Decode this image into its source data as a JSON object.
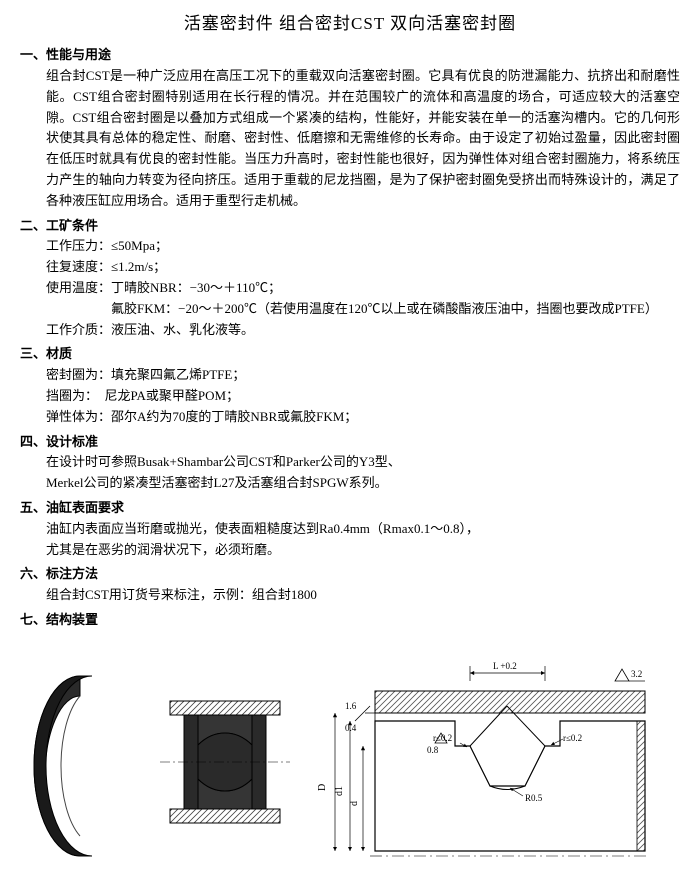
{
  "title": "活塞密封件 组合密封CST 双向活塞密封圈",
  "sections": [
    {
      "num": "一、",
      "header": "性能与用途",
      "body": "组合封CST是一种广泛应用在高压工况下的重载双向活塞密封圈。它具有优良的防泄漏能力、抗挤出和耐磨性能。CST组合密封圈特别适用在长行程的情况。并在范围较广的流体和高温度的场合，可适应较大的活塞空隙。CST组合密封圈是以叠加方式组成一个紧凑的结构，性能好，并能安装在单一的活塞沟槽内。它的几何形状使其具有总体的稳定性、耐磨、密封性、低磨擦和无需维修的长寿命。由于设定了初始过盈量，因此密封圈在低压时就具有优良的密封性能。当压力升高时，密封性能也很好，因为弹性体对组合密封圈施力，将系统压力产生的轴向力转变为径向挤压。适用于重载的尼龙挡圈，是为了保护密封圈免受挤出而特殊设计的，满足了各种液压缸应用场合。适用于重型行走机械。"
    },
    {
      "num": "二、",
      "header": "工矿条件",
      "params": [
        "工作压力：≤50Mpa；",
        "往复速度：≤1.2m/s；",
        "使用温度：丁晴胶NBR：−30～＋110℃；",
        "　　　　　氟胶FKM：−20～＋200℃（若使用温度在120℃以上或在磷酸酯液压油中，挡圈也要改成PTFE）",
        "工作介质：液压油、水、乳化液等。"
      ]
    },
    {
      "num": "三、",
      "header": "材质",
      "params": [
        "密封圈为：填充聚四氟乙烯PTFE；",
        "挡圈为：　尼龙PA或聚甲醛POM；",
        "弹性体为：邵尔A约为70度的丁晴胶NBR或氟胶FKM；"
      ]
    },
    {
      "num": "四、",
      "header": "设计标准",
      "params": [
        "在设计时可参照Busak+Shambar公司CST和Parker公司的Y3型、",
        "Merkel公司的紧凑型活塞密封L27及活塞组合封SPGW系列。"
      ]
    },
    {
      "num": "五、",
      "header": "油缸表面要求",
      "params": [
        "油缸内表面应当珩磨或抛光，使表面粗糙度达到Ra0.4mm（Rmax0.1～0.8），",
        "尤其是在恶劣的润滑状况下，必须珩磨。"
      ]
    },
    {
      "num": "六、",
      "header": "标注方法",
      "params": [
        "组合封CST用订货号来标注，示例：组合封1800"
      ]
    },
    {
      "num": "七、",
      "header": "结构装置",
      "params": []
    }
  ],
  "diagram": {
    "ring_dark": "#2a2a2a",
    "ring_mid": "#3d3d3d",
    "hatch": "#555555",
    "labels": {
      "L": "L +0.2",
      "tol1": "3.2",
      "tol2": "1.6",
      "tol3": "0.4",
      "tol4": "0.8",
      "r1": "r≤0.2",
      "r2": "r≤0.2",
      "radius": "R0.5",
      "D": "D",
      "d1": "d1",
      "d": "d"
    }
  }
}
